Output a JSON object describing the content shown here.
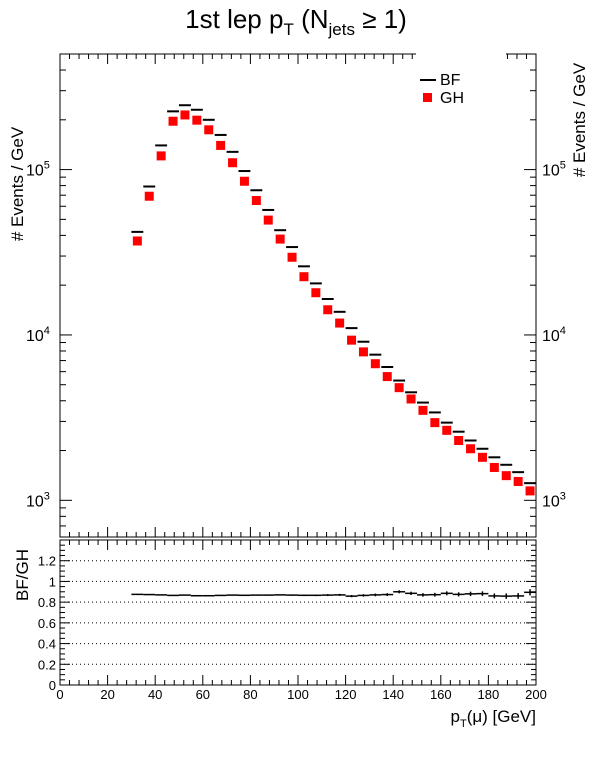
{
  "chart_data": [
    {
      "type": "scatter",
      "title": {
        "main": "1st lep p",
        "sub_t": "T",
        "paren_open": " (N",
        "sub_jets": "jets",
        "ge": " ≥ 1)"
      },
      "ylabel": "# Events / GeV",
      "ylabel_right": "# Events / GeV",
      "y_scale": "log",
      "ylim": [
        600,
        500000
      ],
      "xlim": [
        0,
        200
      ],
      "y_tick_labels": [
        {
          "base": "10",
          "exp": "3",
          "value": 1000
        },
        {
          "base": "10",
          "exp": "4",
          "value": 10000
        },
        {
          "base": "10",
          "exp": "5",
          "value": 100000
        }
      ],
      "legend": [
        {
          "name": "BF",
          "marker": "hline",
          "color": "#000000"
        },
        {
          "name": "GH",
          "marker": "square",
          "color": "#ff0000"
        }
      ],
      "legend_position": "top-right",
      "x": [
        32.5,
        37.5,
        42.5,
        47.5,
        52.5,
        57.5,
        62.5,
        67.5,
        72.5,
        77.5,
        82.5,
        87.5,
        92.5,
        97.5,
        102.5,
        107.5,
        112.5,
        117.5,
        122.5,
        127.5,
        132.5,
        137.5,
        142.5,
        147.5,
        152.5,
        157.5,
        162.5,
        167.5,
        172.5,
        177.5,
        182.5,
        187.5,
        192.5,
        197.5
      ],
      "bin_width": 5,
      "series": [
        {
          "name": "BF",
          "color": "#000000",
          "values": [
            42000,
            79000,
            140000,
            225000,
            245000,
            230000,
            200000,
            162000,
            128000,
            98000,
            75000,
            57000,
            43000,
            34000,
            26000,
            20500,
            16500,
            13800,
            11000,
            9100,
            7600,
            6400,
            5300,
            4500,
            3900,
            3400,
            2950,
            2600,
            2300,
            2050,
            1820,
            1640,
            1480,
            1270
          ]
        },
        {
          "name": "GH",
          "color": "#ff0000",
          "values": [
            37000,
            69000,
            121000,
            196000,
            214000,
            199000,
            174000,
            140000,
            110000,
            85000,
            65000,
            49500,
            38000,
            29500,
            22500,
            18000,
            14200,
            11800,
            9300,
            7900,
            6700,
            5600,
            4800,
            4100,
            3500,
            2950,
            2650,
            2300,
            2050,
            1820,
            1580,
            1410,
            1300,
            1140
          ]
        }
      ]
    },
    {
      "type": "scatter",
      "ylabel": "BF/GH",
      "xlabel": {
        "pre": "p",
        "sub": "T",
        "post": "(μ) [GeV]"
      },
      "xlim": [
        0,
        200
      ],
      "ylim": [
        0,
        1.4
      ],
      "grid": "horizontal dotted",
      "y_ticks": [
        0,
        0.2,
        0.4,
        0.6,
        0.8,
        1,
        1.2
      ],
      "y_tick_labels": [
        "0",
        "0.2",
        "0.4",
        "0.6",
        "0.8",
        "1",
        "1.2"
      ],
      "x_ticks": [
        0,
        20,
        40,
        60,
        80,
        100,
        120,
        140,
        160,
        180,
        200
      ],
      "x_tick_labels": [
        "0",
        "20",
        "40",
        "60",
        "80",
        "100",
        "120",
        "140",
        "160",
        "180",
        "200"
      ],
      "x": [
        32.5,
        37.5,
        42.5,
        47.5,
        52.5,
        57.5,
        62.5,
        67.5,
        72.5,
        77.5,
        82.5,
        87.5,
        92.5,
        97.5,
        102.5,
        107.5,
        112.5,
        117.5,
        122.5,
        127.5,
        132.5,
        137.5,
        142.5,
        147.5,
        152.5,
        157.5,
        162.5,
        167.5,
        172.5,
        177.5,
        182.5,
        187.5,
        192.5,
        197.5
      ],
      "bin_width": 5,
      "values": [
        0.875,
        0.873,
        0.87,
        0.865,
        0.868,
        0.862,
        0.862,
        0.865,
        0.868,
        0.866,
        0.868,
        0.868,
        0.87,
        0.868,
        0.866,
        0.866,
        0.868,
        0.87,
        0.858,
        0.865,
        0.87,
        0.873,
        0.9,
        0.885,
        0.87,
        0.872,
        0.885,
        0.875,
        0.88,
        0.882,
        0.86,
        0.858,
        0.86,
        0.895
      ],
      "errors": [
        0.004,
        0.004,
        0.004,
        0.004,
        0.004,
        0.004,
        0.004,
        0.004,
        0.004,
        0.004,
        0.004,
        0.005,
        0.005,
        0.006,
        0.007,
        0.008,
        0.009,
        0.01,
        0.011,
        0.012,
        0.013,
        0.014,
        0.015,
        0.016,
        0.017,
        0.018,
        0.019,
        0.02,
        0.021,
        0.022,
        0.024,
        0.026,
        0.027,
        0.03
      ]
    }
  ]
}
